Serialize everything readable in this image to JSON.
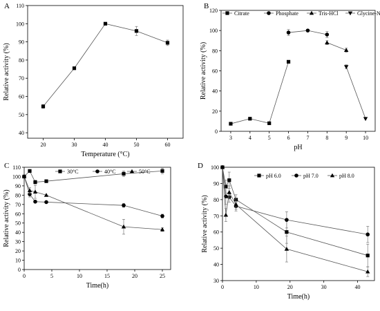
{
  "chart_data": [
    {
      "panel": "A",
      "type": "line",
      "xlabel": "Temperature (°C)",
      "ylabel": "Relative activity (%)",
      "xlim": [
        15,
        65
      ],
      "ylim": [
        37,
        110
      ],
      "xticks": [
        20,
        30,
        40,
        50,
        60
      ],
      "yticks": [
        40,
        50,
        60,
        70,
        80,
        90,
        100,
        110
      ],
      "legend": "none",
      "series": [
        {
          "marker": "square",
          "x": [
            20,
            30,
            40,
            50,
            60
          ],
          "y": [
            54.5,
            75.5,
            100,
            96,
            89.5
          ],
          "err": [
            1.0,
            0.4,
            0.6,
            2.5,
            1.5
          ]
        }
      ]
    },
    {
      "panel": "B",
      "type": "line",
      "xlabel": "pH",
      "ylabel": "Relative activity (%)",
      "xlim": [
        2.5,
        10.5
      ],
      "ylim": [
        0,
        120
      ],
      "xticks": [
        3,
        4,
        5,
        6,
        7,
        8,
        9,
        10
      ],
      "yticks": [
        0,
        20,
        40,
        60,
        80,
        100,
        120
      ],
      "legend": "top",
      "series": [
        {
          "name": "Citrate",
          "marker": "square",
          "x": [
            3,
            4,
            5,
            6
          ],
          "y": [
            7.5,
            12.5,
            8,
            69
          ],
          "err": [
            0,
            0,
            0,
            0
          ]
        },
        {
          "name": "Phosphate",
          "marker": "circle",
          "x": [
            6,
            7,
            8
          ],
          "y": [
            98,
            100,
            96
          ],
          "err": [
            3,
            1,
            3
          ]
        },
        {
          "name": "Tris-HCl",
          "marker": "triangle-up",
          "x": [
            8,
            9
          ],
          "y": [
            88,
            80.5
          ],
          "err": [
            2,
            2
          ]
        },
        {
          "name": "Glycine-NaOH",
          "marker": "triangle-down",
          "x": [
            9,
            10
          ],
          "y": [
            64,
            12.5
          ],
          "err": [
            2,
            0
          ]
        }
      ]
    },
    {
      "panel": "C",
      "type": "line",
      "xlabel": "Time(h)",
      "ylabel": "Relative activity (%)",
      "xlim": [
        0,
        26.5
      ],
      "ylim": [
        0,
        110
      ],
      "xticks": [
        0,
        5,
        10,
        15,
        20,
        25
      ],
      "yticks": [
        0,
        10,
        20,
        30,
        40,
        50,
        60,
        70,
        80,
        90,
        100,
        110
      ],
      "legend": "top",
      "series": [
        {
          "name": "30°C",
          "marker": "square",
          "x": [
            0,
            1,
            2,
            4,
            18,
            25
          ],
          "y": [
            100,
            106,
            94,
            95,
            103,
            106
          ],
          "err": [
            0,
            0,
            2,
            0,
            3,
            3
          ]
        },
        {
          "name": "40°C",
          "marker": "circle",
          "x": [
            0,
            1,
            2,
            4,
            18,
            25
          ],
          "y": [
            100,
            81,
            73,
            72.5,
            69,
            57.5
          ],
          "err": [
            0,
            3,
            0,
            0,
            2,
            2
          ]
        },
        {
          "name": "50°C",
          "marker": "triangle-up",
          "x": [
            0,
            1,
            2,
            4,
            18,
            25
          ],
          "y": [
            100,
            85,
            83.5,
            80,
            46,
            43
          ],
          "err": [
            0,
            3,
            7,
            0,
            8,
            2
          ]
        }
      ]
    },
    {
      "panel": "D",
      "type": "line",
      "xlabel": "Time(h)",
      "ylabel": "Relative activity (%)",
      "xlim": [
        0,
        45
      ],
      "ylim": [
        30,
        100
      ],
      "xticks": [
        0,
        10,
        20,
        30,
        40
      ],
      "yticks": [
        30,
        40,
        50,
        60,
        70,
        80,
        90,
        100
      ],
      "legend": "top",
      "series": [
        {
          "name": "pH 6.0",
          "marker": "square",
          "x": [
            0,
            1,
            2,
            4,
            19,
            43
          ],
          "y": [
            100,
            88,
            92,
            80,
            60,
            45.5
          ],
          "err": [
            0,
            4,
            5,
            3,
            7,
            7
          ]
        },
        {
          "name": "pH 7.0",
          "marker": "circle",
          "x": [
            0,
            1,
            2,
            4,
            19,
            43
          ],
          "y": [
            100,
            82,
            81.5,
            76,
            67.5,
            58.5
          ],
          "err": [
            0,
            5,
            3,
            2,
            5,
            5
          ]
        },
        {
          "name": "pH 8.0",
          "marker": "triangle-up",
          "x": [
            0,
            1,
            2,
            4,
            19,
            43
          ],
          "y": [
            100,
            70.5,
            84.5,
            77,
            49.5,
            35.5
          ],
          "err": [
            0,
            4,
            4,
            4,
            8,
            3
          ]
        }
      ]
    }
  ]
}
